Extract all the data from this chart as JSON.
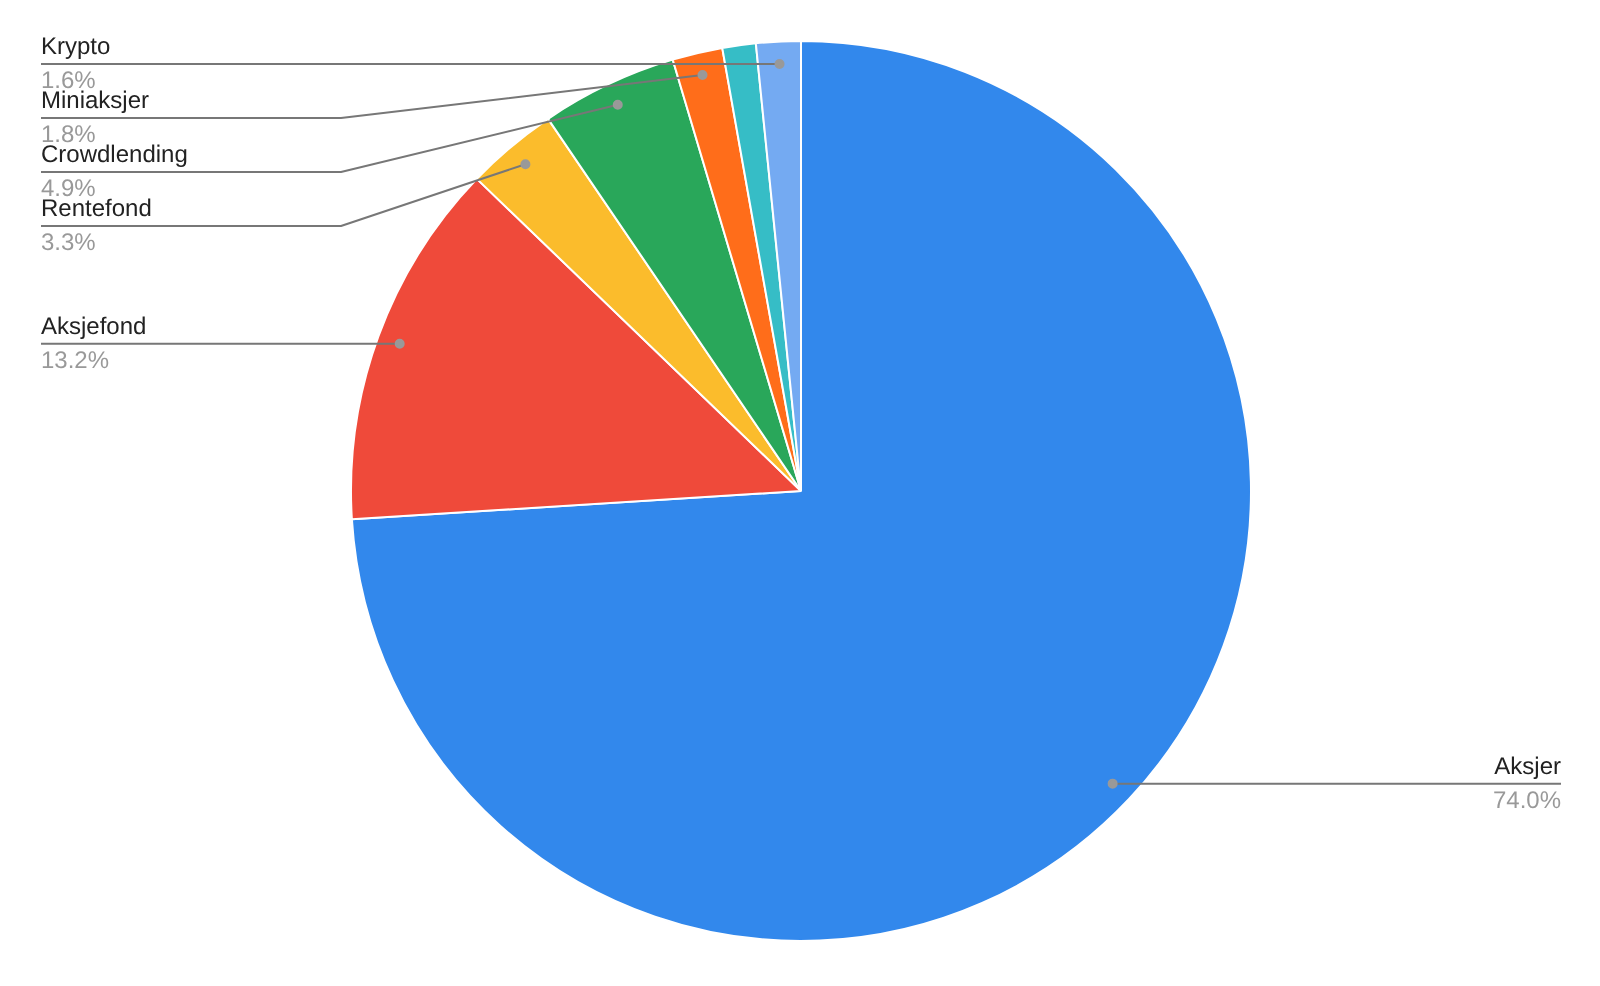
{
  "chart_data": {
    "type": "pie",
    "categories": [
      "Aksjer",
      "Aksjefond",
      "Rentefond",
      "Crowdlending",
      "Miniaksjer",
      null,
      "Krypto"
    ],
    "values": [
      74.0,
      13.2,
      3.3,
      4.9,
      1.8,
      1.2,
      1.6
    ],
    "colors": [
      "#3288ec",
      "#ef4a3a",
      "#fbbc2c",
      "#29a75a",
      "#ff6d1a",
      "#36bdc6",
      "#74aaf2"
    ],
    "value_labels": [
      "74.0%",
      "13.2%",
      "3.3%",
      "4.9%",
      "1.8%",
      null,
      "1.6%"
    ]
  }
}
